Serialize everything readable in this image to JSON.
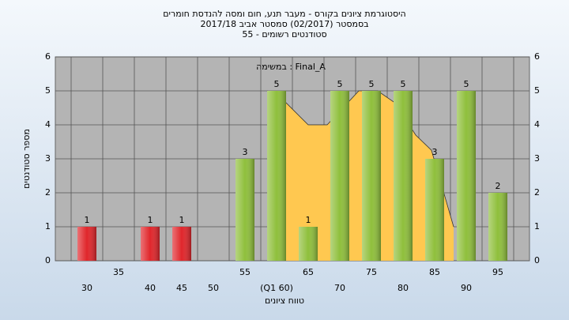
{
  "chart_data": {
    "type": "bar",
    "title_lines": [
      "היסטוגרמת ציונים בקורס - מעבר תנע, חום ומסה להנדסת חומרים",
      "בסמסטר  (02/2017)  סמסטר אביב 2017/18",
      "סטודנטים רשומים - 55"
    ],
    "legend_text": "במשימה : Final_A",
    "y_label": "מספר סטודנטים",
    "x_label": "טווח ציונים",
    "categories": [
      "30",
      "35",
      "40",
      "45",
      "50",
      "55",
      "(Q1 60)",
      "65",
      "70",
      "75",
      "80",
      "85",
      "90",
      "95"
    ],
    "values": [
      1,
      null,
      1,
      1,
      null,
      3,
      5,
      1,
      5,
      5,
      5,
      3,
      5,
      2
    ],
    "colors": [
      "#e0262b",
      null,
      "#e0262b",
      "#e0262b",
      null,
      "#8fbf3c",
      "#8fbf3c",
      "#8fbf3c",
      "#8fbf3c",
      "#8fbf3c",
      "#8fbf3c",
      "#8fbf3c",
      "#8fbf3c",
      "#8fbf3c"
    ],
    "curve": {
      "color": "#ffc850",
      "x": [
        58.5,
        61.5,
        65,
        68,
        70,
        73,
        76,
        78.7,
        82,
        84.5,
        88
      ],
      "values": [
        5,
        4.65,
        4,
        4,
        4.4,
        5,
        5,
        4.65,
        3.7,
        3.25,
        1
      ]
    },
    "xlim": [
      25,
      100
    ],
    "ylim": [
      0,
      6
    ],
    "yticks": [
      0,
      1,
      2,
      3,
      4,
      5,
      6
    ],
    "grid": true
  }
}
